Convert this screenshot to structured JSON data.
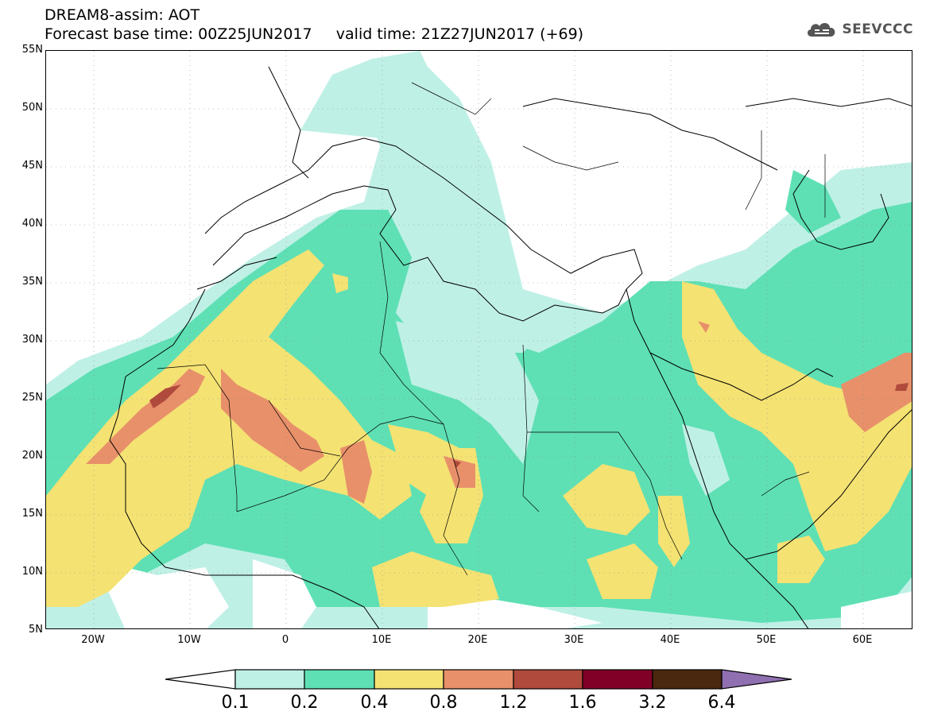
{
  "header": {
    "line1": "DREAM8-assim: AOT",
    "line2": "Forecast base time: 00Z25JUN2017     valid time: 21Z27JUN2017 (+69)"
  },
  "logo": {
    "text": "SEEVCCC",
    "icon": "cloud-icon"
  },
  "axes": {
    "y_labels": [
      "55N",
      "50N",
      "45N",
      "40N",
      "35N",
      "30N",
      "25N",
      "20N",
      "15N",
      "10N",
      "5N"
    ],
    "x_labels": [
      "20W",
      "10W",
      "0",
      "10E",
      "20E",
      "30E",
      "40E",
      "50E",
      "60E"
    ]
  },
  "colorbar": {
    "labels": [
      "0.1",
      "0.2",
      "0.4",
      "0.8",
      "1.2",
      "1.6",
      "3.2",
      "6.4"
    ],
    "colors": [
      "#ffffff",
      "#bff0e6",
      "#5ee0b4",
      "#f4e273",
      "#e8906a",
      "#b04a3c",
      "#800028",
      "#4a2810",
      "#9070b0"
    ]
  },
  "legend_colors": {
    "c1": "#bff0e6",
    "c2": "#5ee0b4",
    "c3": "#f4e273",
    "c4": "#e8906a",
    "c5": "#b04a3c"
  }
}
